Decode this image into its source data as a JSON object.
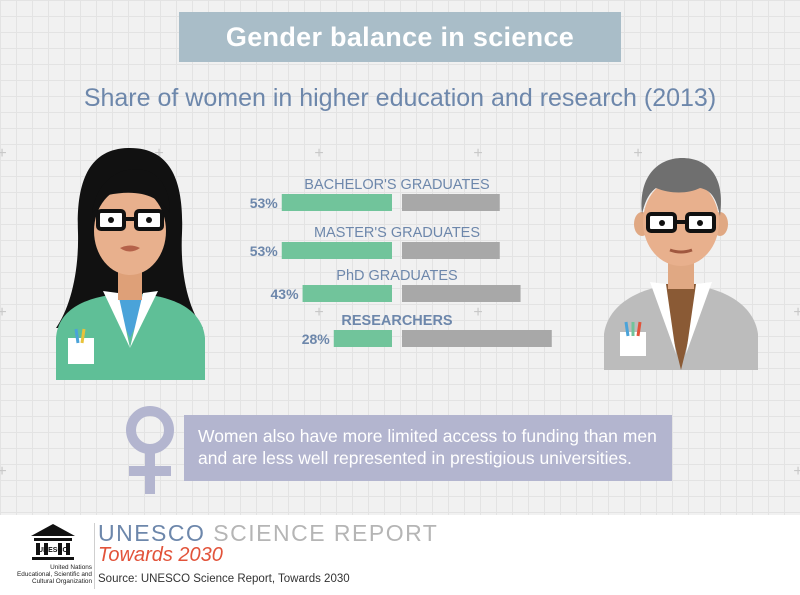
{
  "header": {
    "title": "Gender balance in science"
  },
  "subtitle": "Share of women in higher education and research (2013)",
  "chart_data": {
    "type": "bar",
    "orientation": "horizontal",
    "title": "Share of women in higher education and research (2013)",
    "categories": [
      "BACHELOR'S GRADUATES",
      "MASTER'S GRADUATES",
      "PhD GRADUATES",
      "RESEARCHERS"
    ],
    "series": [
      {
        "name": "Women",
        "values": [
          53,
          53,
          43,
          28
        ]
      },
      {
        "name": "Men",
        "values": [
          47,
          47,
          57,
          72
        ]
      }
    ],
    "value_labels": [
      "53%",
      "53%",
      "43%",
      "28%"
    ],
    "xlim": [
      0,
      100
    ],
    "unit": "%",
    "colors": {
      "women": "#71c49b",
      "men": "#a8a8a8",
      "label": "#6d87ab"
    }
  },
  "callout": {
    "text": "Women also have more limited access to funding than men and are less well represented in prestigious universities."
  },
  "footer": {
    "report_title_strong": "UNESCO",
    "report_title_light": "SCIENCE REPORT",
    "report_subtitle": "Towards 2030",
    "source": "Source: UNESCO Science Report, Towards 2030",
    "logo_text": "UNESCO",
    "org_line1": "United Nations",
    "org_line2": "Educational, Scientific and",
    "org_line3": "Cultural Organization"
  },
  "colors": {
    "header_bg": "#a9bdc8",
    "subtitle": "#6d87ab",
    "callout_bg": "#b3b5cf",
    "venus": "#b3b5cf",
    "accent_red": "#e2533a"
  },
  "icons": [
    "female-scientist-icon",
    "male-scientist-icon",
    "female-symbol-icon",
    "unesco-temple-logo"
  ]
}
